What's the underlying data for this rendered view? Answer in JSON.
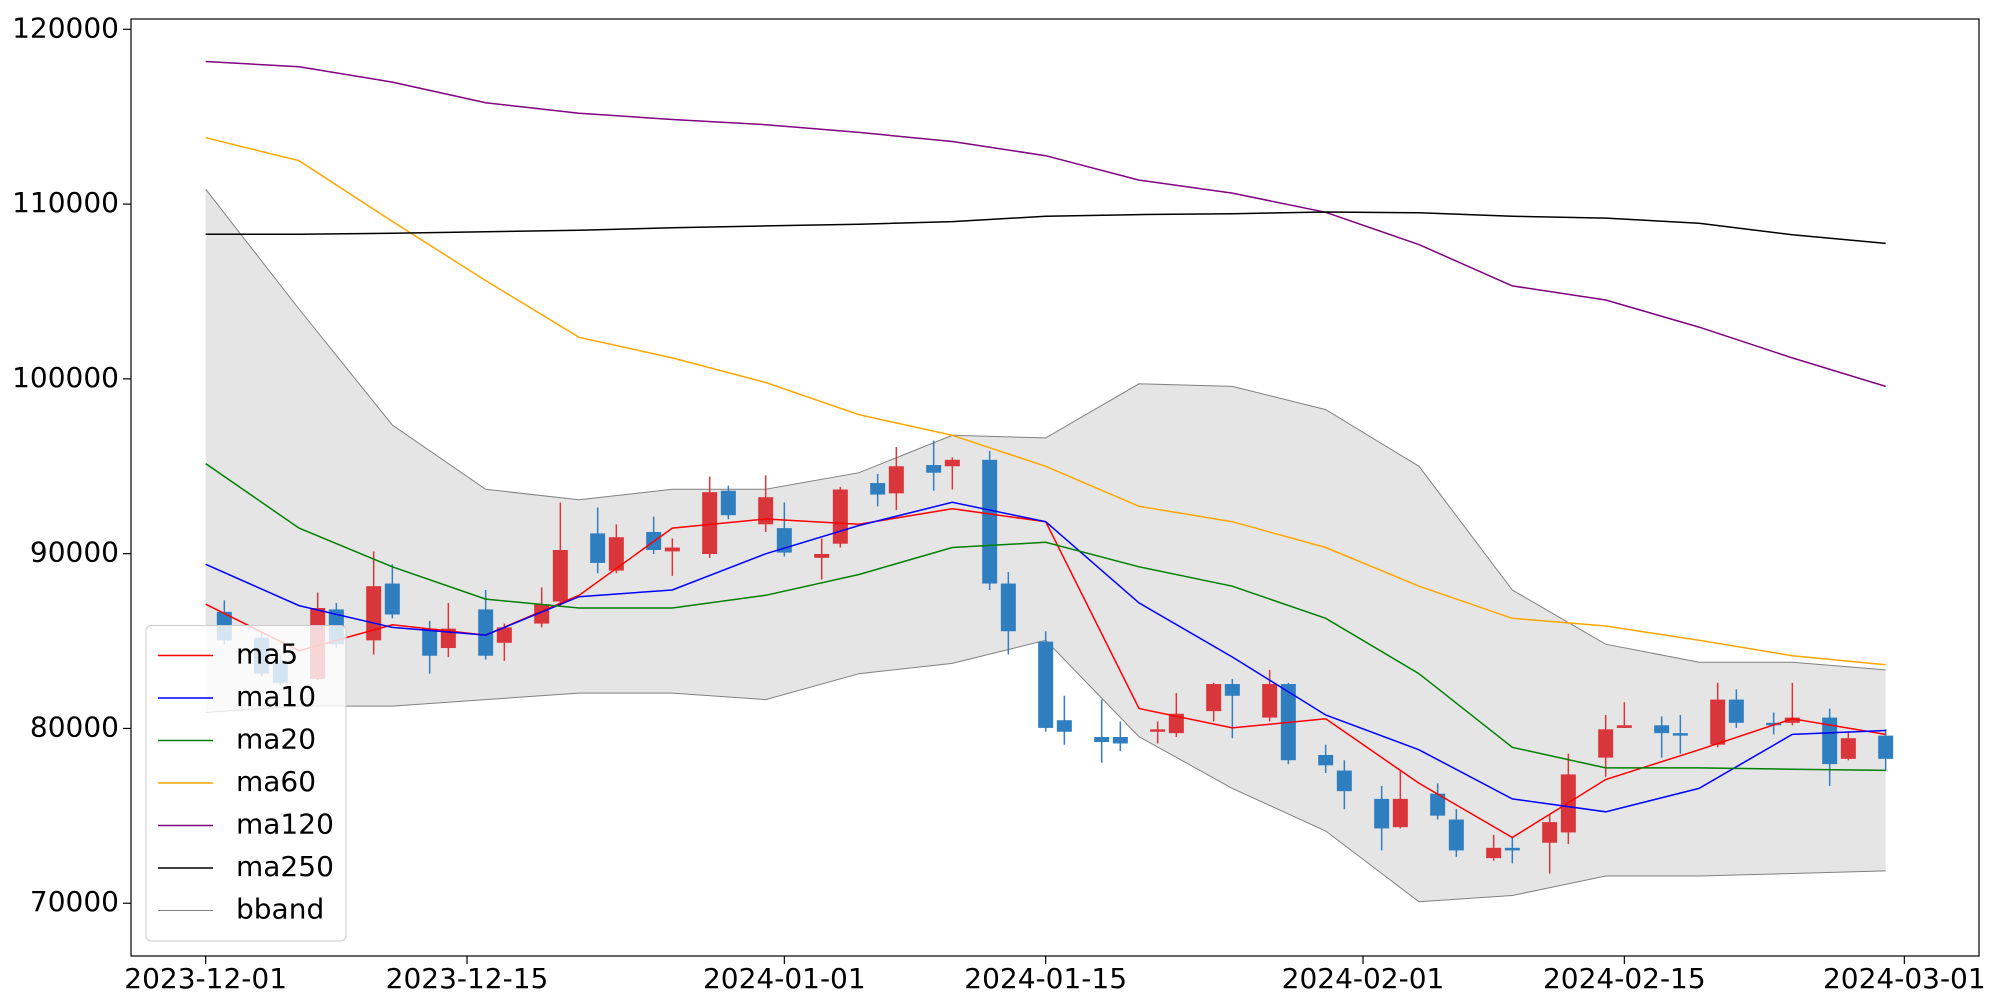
{
  "chart_data": {
    "type": "candlestick",
    "x": [
      "2023-12-02",
      "2023-12-04",
      "2023-12-05",
      "2023-12-07",
      "2023-12-08",
      "2023-12-10",
      "2023-12-11",
      "2023-12-13",
      "2023-12-14",
      "2023-12-16",
      "2023-12-17",
      "2023-12-19",
      "2023-12-20",
      "2023-12-22",
      "2023-12-23",
      "2023-12-25",
      "2023-12-26",
      "2023-12-28",
      "2023-12-29",
      "2023-12-31",
      "2024-01-01",
      "2024-01-03",
      "2024-01-04",
      "2024-01-06",
      "2024-01-07",
      "2024-01-09",
      "2024-01-10",
      "2024-01-12",
      "2024-01-13",
      "2024-01-15",
      "2024-01-16",
      "2024-01-18",
      "2024-01-19",
      "2024-01-21",
      "2024-01-22",
      "2024-01-24",
      "2024-01-25",
      "2024-01-27",
      "2024-01-28",
      "2024-01-30",
      "2024-01-31",
      "2024-02-02",
      "2024-02-03",
      "2024-02-05",
      "2024-02-06",
      "2024-02-08",
      "2024-02-09",
      "2024-02-11",
      "2024-02-12",
      "2024-02-14",
      "2024-02-15",
      "2024-02-17",
      "2024-02-18",
      "2024-02-20",
      "2024-02-21",
      "2024-02-23",
      "2024-02-24",
      "2024-02-26",
      "2024-02-27",
      "2024-02-29"
    ],
    "open": [
      86670,
      85190,
      83720,
      82830,
      86810,
      85040,
      88290,
      85710,
      84600,
      86810,
      84900,
      86000,
      87260,
      91160,
      89030,
      91240,
      90130,
      89980,
      93600,
      91680,
      91460,
      89760,
      90570,
      94040,
      93450,
      95070,
      95000,
      95370,
      88290,
      84970,
      80470,
      79510,
      79510,
      79810,
      79730,
      80990,
      82540,
      80620,
      82540,
      78480,
      77590,
      75970,
      74350,
      76270,
      74790,
      72580,
      73170,
      73460,
      74050,
      78330,
      80030,
      80180,
      79730,
      79070,
      81650,
      80320,
      80320,
      80620,
      78260,
      79590
    ],
    "high": [
      87330,
      85560,
      84230,
      87770,
      87180,
      90130,
      89390,
      86150,
      87180,
      87920,
      86000,
      88070,
      92930,
      92640,
      91680,
      92120,
      90870,
      94410,
      93890,
      94480,
      92930,
      90870,
      93820,
      94560,
      96100,
      96470,
      95510,
      95880,
      88950,
      85560,
      81870,
      81650,
      80400,
      80400,
      82020,
      82610,
      82830,
      83350,
      82610,
      79070,
      78180,
      76710,
      77590,
      76860,
      75380,
      73910,
      73760,
      75090,
      78550,
      80770,
      81500,
      80690,
      80770,
      82610,
      82240,
      80910,
      82610,
      81130,
      79810,
      79950
    ],
    "low": [
      84820,
      82980,
      82460,
      82760,
      84600,
      84230,
      86300,
      83130,
      84080,
      83940,
      83860,
      85780,
      87030,
      88880,
      88880,
      89980,
      88730,
      89760,
      91970,
      91240,
      89840,
      88510,
      90350,
      92710,
      92490,
      93600,
      93670,
      87920,
      84230,
      79810,
      79070,
      78040,
      78700,
      79140,
      79510,
      80400,
      79440,
      80400,
      77960,
      77450,
      75380,
      73020,
      74280,
      74790,
      72650,
      72430,
      72280,
      71690,
      73390,
      77230,
      80030,
      78330,
      78550,
      78920,
      80030,
      79660,
      80180,
      76710,
      78180,
      77590
    ],
    "close": [
      85040,
      83130,
      82610,
      86890,
      84820,
      88140,
      86520,
      84160,
      85710,
      84160,
      85780,
      87110,
      90210,
      89470,
      90940,
      90210,
      90350,
      93520,
      92200,
      93230,
      90060,
      89980,
      93670,
      93380,
      95000,
      94630,
      95370,
      88290,
      85560,
      80030,
      79810,
      79220,
      79140,
      79950,
      80840,
      82540,
      81870,
      82540,
      78180,
      77890,
      76410,
      74280,
      75970,
      75010,
      73020,
      73170,
      73020,
      74640,
      77370,
      79950,
      80180,
      79730,
      79590,
      81650,
      80320,
      80180,
      80620,
      77960,
      79440,
      78260
    ],
    "up_color": "#d8363a",
    "down_color": "#2f7ebf",
    "overlays": {
      "x": [
        "2023-12-01",
        "2023-12-06",
        "2023-12-11",
        "2023-12-16",
        "2023-12-21",
        "2023-12-26",
        "2023-12-31",
        "2024-01-05",
        "2024-01-10",
        "2024-01-15",
        "2024-01-20",
        "2024-01-25",
        "2024-01-30",
        "2024-02-04",
        "2024-02-09",
        "2024-02-14",
        "2024-02-19",
        "2024-02-24",
        "2024-02-29"
      ],
      "series": [
        {
          "name": "ma5",
          "color": "#ff0000",
          "values": [
            87110,
            84450,
            85930,
            85340,
            87620,
            91460,
            91980,
            91680,
            92570,
            91830,
            81140,
            80030,
            80550,
            76860,
            73760,
            77080,
            78780,
            80550,
            79660
          ]
        },
        {
          "name": "ma10",
          "color": "#0000ff",
          "values": [
            89390,
            87030,
            85780,
            85340,
            87540,
            87920,
            89990,
            91610,
            92940,
            91830,
            87180,
            84090,
            80770,
            78780,
            75970,
            75230,
            76570,
            79660,
            79880
          ]
        },
        {
          "name": "ma20",
          "color": "#008000",
          "values": [
            95150,
            91460,
            89250,
            87400,
            86890,
            86890,
            87620,
            88810,
            90350,
            90650,
            89250,
            88140,
            86300,
            83130,
            78920,
            77740,
            77740,
            77670,
            77600
          ]
        },
        {
          "name": "ma60",
          "color": "#ffa500",
          "values": [
            113800,
            112480,
            109010,
            105620,
            102380,
            101200,
            99790,
            97950,
            96770,
            95000,
            92710,
            91830,
            90350,
            88140,
            86300,
            85860,
            85040,
            84160,
            83640
          ]
        },
        {
          "name": "ma120",
          "color": "#800080",
          "values": [
            118160,
            117860,
            116980,
            115800,
            115200,
            114840,
            114540,
            114100,
            113580,
            112770,
            111370,
            110630,
            109530,
            107680,
            105320,
            104510,
            102960,
            101200,
            99570
          ]
        },
        {
          "name": "ma250",
          "color": "#000000",
          "values": [
            108270,
            108280,
            108330,
            108420,
            108500,
            108650,
            108750,
            108850,
            109000,
            109300,
            109400,
            109450,
            109550,
            109500,
            109300,
            109200,
            108900,
            108250,
            107750
          ]
        }
      ],
      "bband": {
        "name": "bband",
        "color": "#808080",
        "fill": "#e5e5e5",
        "upper": [
          110850,
          104000,
          97360,
          93680,
          93080,
          93680,
          93680,
          94630,
          96770,
          96620,
          99720,
          99570,
          98240,
          95000,
          87920,
          84820,
          83790,
          83790,
          83350
        ],
        "lower": [
          80910,
          81280,
          81280,
          81650,
          82020,
          82020,
          81650,
          83130,
          83720,
          85040,
          79530,
          76570,
          74130,
          70080,
          70440,
          71560,
          71560,
          71700,
          71850
        ]
      }
    },
    "xlim": [
      "2023-11-27",
      "2024-03-05"
    ],
    "xticks": [
      "2023-12-01",
      "2023-12-15",
      "2024-01-01",
      "2024-01-15",
      "2024-02-01",
      "2024-02-15",
      "2024-03-01"
    ],
    "ylim": [
      66980,
      120590
    ],
    "yticks": [
      70000,
      80000,
      90000,
      100000,
      110000,
      120000
    ],
    "legend": "lower left"
  }
}
